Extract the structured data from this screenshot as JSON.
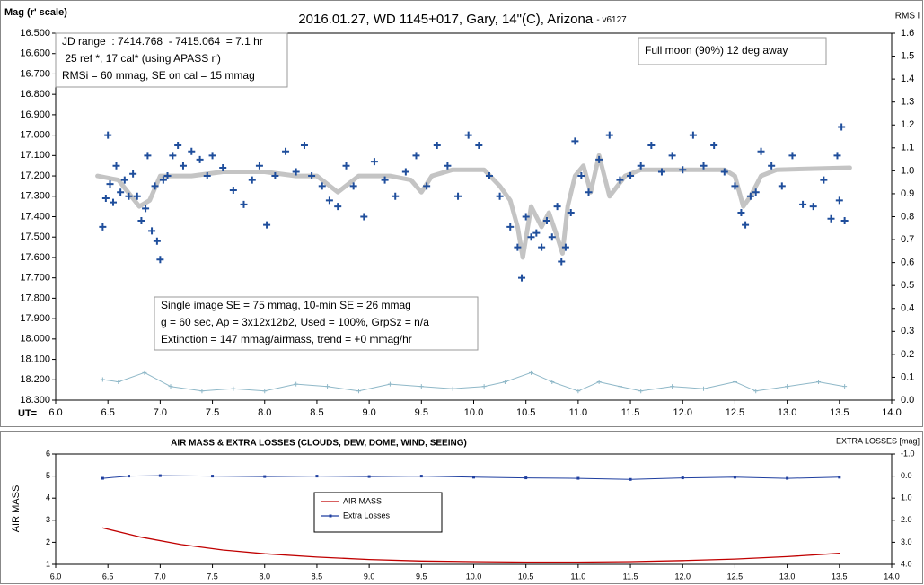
{
  "chart_data": [
    {
      "type": "scatter",
      "title": "2016.01.27, WD 1145+017, Gary, 14\"(C), Arizona",
      "title_suffix": "- v6127",
      "ylabel": "Mag (r' scale)",
      "y2label": "RMS i",
      "xlabel": "UT=",
      "annotations": [
        {
          "lines": [
            "JD range  : 7414.768  - 7415.064  = 7.1 hr",
            " 25 ref *, 17 cal* (using APASS r')",
            "RMSi = 60 mmag, SE on cal = 15 mmag"
          ]
        },
        {
          "lines": [
            "Full moon (90%) 12 deg away"
          ]
        },
        {
          "lines": [
            "Single image SE = 75 mmag, 10-min SE = 26 mmag",
            "g = 60 sec, Ap = 3x12x12b2, Used = 100%, GrpSz = n/a",
            "Extinction = 147 mmag/airmass, trend = +0 mmag/hr"
          ]
        }
      ],
      "xlim": [
        6,
        14
      ],
      "xticks": [
        {
          "value": 6,
          "label": "6.0"
        },
        6.5,
        {
          "value": 7,
          "label": "7.0"
        },
        7.5,
        {
          "value": 8,
          "label": "8.0"
        },
        8.5,
        {
          "value": 9,
          "label": "9.0"
        },
        9.5,
        {
          "value": 10,
          "label": "10.0"
        },
        10.5,
        {
          "value": 11,
          "label": "11.0"
        },
        11.5,
        {
          "value": 12,
          "label": "12.0"
        },
        12.5,
        {
          "value": 13,
          "label": "13.0"
        },
        13.5,
        {
          "value": 14,
          "label": "14.0"
        }
      ],
      "ylim": [
        18.3,
        16.5
      ],
      "yticks": [
        {
          "value": 16.5,
          "label": "16.500"
        },
        {
          "value": 16.6,
          "label": "16.600"
        },
        {
          "value": 16.7,
          "label": "16.700"
        },
        {
          "value": 16.8,
          "label": "16.800"
        },
        {
          "value": 16.9,
          "label": "16.900"
        },
        {
          "value": 17.0,
          "label": "17.000"
        },
        {
          "value": 17.1,
          "label": "17.100"
        },
        {
          "value": 17.2,
          "label": "17.200"
        },
        {
          "value": 17.3,
          "label": "17.300"
        },
        {
          "value": 17.4,
          "label": "17.400"
        },
        {
          "value": 17.5,
          "label": "17.500"
        },
        {
          "value": 17.6,
          "label": "17.600"
        },
        {
          "value": 17.7,
          "label": "17.700"
        },
        {
          "value": 17.8,
          "label": "17.800"
        },
        {
          "value": 17.9,
          "label": "17.900"
        },
        {
          "value": 18.0,
          "label": "18.000"
        },
        {
          "value": 18.1,
          "label": "18.100"
        },
        {
          "value": 18.2,
          "label": "18.200"
        },
        {
          "value": 18.3,
          "label": "18.300"
        }
      ],
      "y2lim": [
        0,
        1.6
      ],
      "y2ticks": [
        {
          "value": 0,
          "label": "0.0"
        },
        0.1,
        0.2,
        0.3,
        0.4,
        0.5,
        0.6,
        0.7,
        0.8,
        0.9,
        {
          "value": 1,
          "label": "1.0"
        },
        1.1,
        1.2,
        1.3,
        1.4,
        1.5,
        1.6
      ],
      "grid": false,
      "series": [
        {
          "style": "line",
          "color": "#c4c4c4",
          "x": [
            6.4,
            6.6,
            6.8,
            6.9,
            7.0,
            7.3,
            7.6,
            8.0,
            8.3,
            8.5,
            8.7,
            8.9,
            9.2,
            9.4,
            9.5,
            9.6,
            9.8,
            10.1,
            10.25,
            10.35,
            10.42,
            10.47,
            10.55,
            10.65,
            10.72,
            10.8,
            10.85,
            10.9,
            10.97,
            11.05,
            11.12,
            11.2,
            11.3,
            11.45,
            11.6,
            12.0,
            12.4,
            12.5,
            12.58,
            12.65,
            12.75,
            12.9,
            13.6
          ],
          "values": [
            17.2,
            17.22,
            17.35,
            17.32,
            17.2,
            17.2,
            17.18,
            17.18,
            17.2,
            17.2,
            17.28,
            17.2,
            17.2,
            17.22,
            17.28,
            17.2,
            17.17,
            17.17,
            17.25,
            17.32,
            17.45,
            17.6,
            17.35,
            17.45,
            17.38,
            17.5,
            17.58,
            17.35,
            17.2,
            17.15,
            17.28,
            17.1,
            17.3,
            17.2,
            17.17,
            17.17,
            17.17,
            17.2,
            17.35,
            17.3,
            17.2,
            17.17,
            17.16
          ]
        },
        {
          "style": "plus",
          "color": "#1f4e9c",
          "x": [
            6.45,
            6.48,
            6.5,
            6.52,
            6.55,
            6.58,
            6.62,
            6.66,
            6.7,
            6.74,
            6.78,
            6.82,
            6.86,
            6.88,
            6.92,
            6.95,
            6.97,
            7.0,
            7.03,
            7.07,
            7.12,
            7.17,
            7.22,
            7.3,
            7.38,
            7.45,
            7.5,
            7.6,
            7.7,
            7.8,
            7.88,
            7.95,
            8.02,
            8.1,
            8.2,
            8.3,
            8.38,
            8.45,
            8.55,
            8.62,
            8.7,
            8.78,
            8.85,
            8.95,
            9.05,
            9.15,
            9.25,
            9.35,
            9.45,
            9.55,
            9.65,
            9.75,
            9.85,
            9.95,
            10.05,
            10.15,
            10.25,
            10.35,
            10.42,
            10.46,
            10.5,
            10.55,
            10.6,
            10.65,
            10.7,
            10.75,
            10.8,
            10.84,
            10.88,
            10.93,
            10.97,
            11.03,
            11.1,
            11.2,
            11.3,
            11.4,
            11.5,
            11.6,
            11.7,
            11.8,
            11.9,
            12.0,
            12.1,
            12.2,
            12.3,
            12.4,
            12.5,
            12.56,
            12.6,
            12.65,
            12.7,
            12.75,
            12.85,
            12.95,
            13.05,
            13.15,
            13.25,
            13.35,
            13.42,
            13.48,
            13.5,
            13.52,
            13.55
          ],
          "values": [
            17.45,
            17.31,
            17.0,
            17.24,
            17.33,
            17.15,
            17.28,
            17.22,
            17.3,
            17.19,
            17.3,
            17.42,
            17.36,
            17.1,
            17.47,
            17.25,
            17.52,
            17.61,
            17.22,
            17.2,
            17.1,
            17.05,
            17.15,
            17.08,
            17.12,
            17.2,
            17.1,
            17.16,
            17.27,
            17.34,
            17.22,
            17.15,
            17.44,
            17.2,
            17.08,
            17.18,
            17.05,
            17.2,
            17.25,
            17.32,
            17.35,
            17.15,
            17.25,
            17.4,
            17.13,
            17.22,
            17.3,
            17.18,
            17.1,
            17.25,
            17.05,
            17.15,
            17.3,
            17.0,
            17.05,
            17.2,
            17.3,
            17.45,
            17.55,
            17.7,
            17.4,
            17.5,
            17.48,
            17.55,
            17.42,
            17.5,
            17.35,
            17.62,
            17.55,
            17.38,
            17.03,
            17.2,
            17.28,
            17.12,
            17.0,
            17.22,
            17.2,
            17.15,
            17.05,
            17.18,
            17.1,
            17.17,
            17.0,
            17.15,
            17.05,
            17.18,
            17.25,
            17.38,
            17.44,
            17.3,
            17.28,
            17.08,
            17.15,
            17.25,
            17.1,
            17.34,
            17.35,
            17.22,
            17.41,
            17.1,
            17.32,
            16.96,
            17.42
          ]
        },
        {
          "style": "cross-line",
          "axis": "y2",
          "color": "#8fb8c8",
          "x": [
            6.45,
            6.6,
            6.85,
            7.1,
            7.4,
            7.7,
            8.0,
            8.3,
            8.6,
            8.9,
            9.2,
            9.5,
            9.8,
            10.1,
            10.3,
            10.55,
            10.75,
            11.0,
            11.2,
            11.4,
            11.6,
            11.9,
            12.2,
            12.5,
            12.7,
            13.0,
            13.3,
            13.55
          ],
          "values": [
            0.09,
            0.08,
            0.12,
            0.06,
            0.04,
            0.05,
            0.04,
            0.07,
            0.06,
            0.04,
            0.07,
            0.06,
            0.05,
            0.06,
            0.08,
            0.12,
            0.08,
            0.04,
            0.08,
            0.06,
            0.04,
            0.06,
            0.05,
            0.08,
            0.04,
            0.06,
            0.08,
            0.06
          ]
        }
      ]
    },
    {
      "type": "line",
      "title": "AIR MASS & EXTRA LOSSES (CLOUDS, DEW, DOME, WIND, SEEING)",
      "ylabel": "AIR MASS",
      "y2label": "EXTRA LOSSES [mag]",
      "legend": "center",
      "xlim": [
        6,
        14
      ],
      "xticks": [
        {
          "value": 6,
          "label": "6.0"
        },
        6.5,
        {
          "value": 7,
          "label": "7.0"
        },
        7.5,
        {
          "value": 8,
          "label": "8.0"
        },
        8.5,
        {
          "value": 9,
          "label": "9.0"
        },
        9.5,
        {
          "value": 10,
          "label": "10.0"
        },
        10.5,
        {
          "value": 11,
          "label": "11.0"
        },
        11.5,
        {
          "value": 12,
          "label": "12.0"
        },
        12.5,
        {
          "value": 13,
          "label": "13.0"
        },
        13.5,
        {
          "value": 14,
          "label": "14.0"
        }
      ],
      "ylim": [
        1,
        6
      ],
      "yticks": [
        1,
        2,
        3,
        4,
        5,
        6
      ],
      "y2lim": [
        4,
        -1
      ],
      "y2ticks": [
        {
          "value": -1,
          "label": "-1.0"
        },
        {
          "value": 0,
          "label": "0.0"
        },
        {
          "value": 1,
          "label": "1.0"
        },
        {
          "value": 2,
          "label": "2.0"
        },
        {
          "value": 3,
          "label": "3.0"
        },
        {
          "value": 4,
          "label": "4.0"
        }
      ],
      "series": [
        {
          "name": "AIR MASS",
          "style": "line",
          "color": "#c00000",
          "x": [
            6.45,
            6.8,
            7.2,
            7.6,
            8.0,
            8.5,
            9.0,
            9.5,
            10.0,
            10.5,
            11.0,
            11.5,
            12.0,
            12.5,
            13.0,
            13.5
          ],
          "values": [
            2.65,
            2.25,
            1.9,
            1.65,
            1.48,
            1.33,
            1.22,
            1.15,
            1.12,
            1.1,
            1.1,
            1.12,
            1.17,
            1.24,
            1.35,
            1.5
          ]
        },
        {
          "name": "Extra Losses",
          "style": "dot-line",
          "axis": "y2",
          "color": "#1f3fa0",
          "x": [
            6.45,
            6.7,
            7.0,
            7.5,
            8.0,
            8.5,
            9.0,
            9.5,
            10.0,
            10.5,
            11.0,
            11.5,
            12.0,
            12.5,
            13.0,
            13.5
          ],
          "values": [
            0.1,
            0.0,
            -0.02,
            0.0,
            0.02,
            0.0,
            0.02,
            0.0,
            0.05,
            0.08,
            0.1,
            0.15,
            0.08,
            0.05,
            0.1,
            0.05
          ]
        }
      ]
    }
  ]
}
